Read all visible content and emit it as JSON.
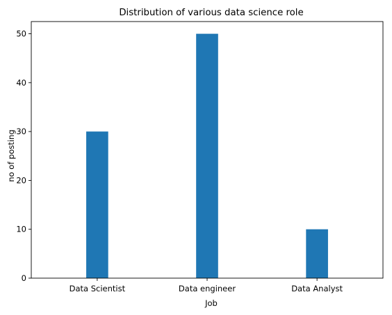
{
  "chart_data": {
    "type": "bar",
    "title": "Distribution of various data science role",
    "xlabel": "Job",
    "ylabel": "no of posting",
    "categories": [
      "Data Scientist",
      "Data engineer",
      "Data Analyst"
    ],
    "values": [
      30,
      50,
      10
    ],
    "ylim": [
      0,
      52.5
    ],
    "yticks": [
      0,
      10,
      20,
      30,
      40,
      50
    ],
    "grid": false,
    "colors": {
      "bar": "#1f77b4",
      "axes": "#000000"
    }
  }
}
